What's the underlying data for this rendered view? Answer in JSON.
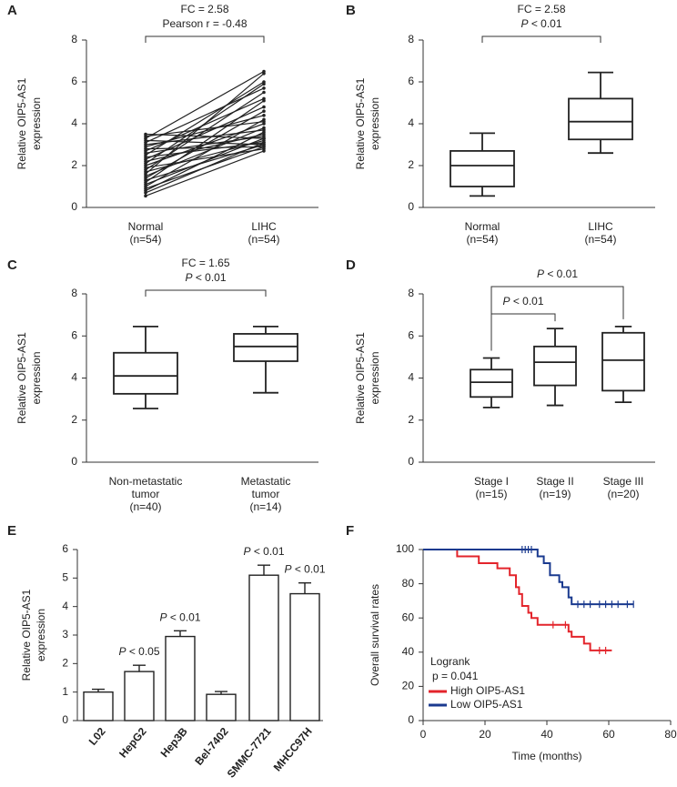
{
  "chart_data": [
    {
      "panel": "A",
      "type": "paired",
      "ylabel": [
        "Relative OIP5-AS1",
        "expression"
      ],
      "categories": [
        [
          "Normal",
          "(n=54)"
        ],
        [
          "LIHC",
          "(n=54)"
        ]
      ],
      "ylim": [
        0,
        8
      ],
      "yticks": [
        0,
        2,
        4,
        6,
        8
      ],
      "color": "#222222",
      "pairs": [
        [
          0.55,
          2.7
        ],
        [
          0.7,
          3.1
        ],
        [
          0.8,
          3.6
        ],
        [
          0.9,
          2.9
        ],
        [
          1.0,
          4.2
        ],
        [
          1.1,
          3.3
        ],
        [
          1.2,
          5.1
        ],
        [
          1.3,
          3.0
        ],
        [
          1.4,
          4.6
        ],
        [
          1.5,
          3.8
        ],
        [
          1.6,
          6.4
        ],
        [
          1.7,
          3.2
        ],
        [
          1.8,
          5.5
        ],
        [
          1.9,
          2.8
        ],
        [
          2.0,
          4.0
        ],
        [
          2.1,
          5.9
        ],
        [
          2.2,
          3.5
        ],
        [
          2.3,
          4.8
        ],
        [
          2.4,
          3.1
        ],
        [
          2.5,
          6.0
        ],
        [
          2.6,
          3.4
        ],
        [
          2.7,
          5.2
        ],
        [
          2.8,
          2.9
        ],
        [
          2.9,
          4.4
        ],
        [
          3.0,
          3.7
        ],
        [
          3.1,
          5.7
        ],
        [
          3.2,
          3.0
        ],
        [
          3.3,
          6.5
        ],
        [
          3.4,
          4.1
        ],
        [
          3.5,
          3.3
        ]
      ],
      "brackets": [
        {
          "from": 0,
          "to": 1,
          "label": [
            "FC = 2.58",
            "Pearson r = -0.48"
          ]
        }
      ]
    },
    {
      "panel": "B",
      "type": "box",
      "ylabel": [
        "Relative OIP5-AS1",
        "expression"
      ],
      "categories": [
        [
          "Normal",
          "(n=54)"
        ],
        [
          "LIHC",
          "(n=54)"
        ]
      ],
      "ylim": [
        0,
        8
      ],
      "yticks": [
        0,
        2,
        4,
        6,
        8
      ],
      "boxes": [
        {
          "min": 0.55,
          "q1": 1.0,
          "median": 2.0,
          "q3": 2.7,
          "max": 3.55
        },
        {
          "min": 2.6,
          "q1": 3.25,
          "median": 4.1,
          "q3": 5.2,
          "max": 6.45
        }
      ],
      "brackets": [
        {
          "from": 0,
          "to": 1,
          "label": [
            "FC = 2.58",
            "P < 0.01"
          ]
        }
      ]
    },
    {
      "panel": "C",
      "type": "box",
      "ylabel": [
        "Relative OIP5-AS1",
        "expression"
      ],
      "categories": [
        [
          "Non-metastatic",
          "tumor",
          "(n=40)"
        ],
        [
          "Metastatic",
          "tumor",
          "(n=14)"
        ]
      ],
      "ylim": [
        0,
        8
      ],
      "yticks": [
        0,
        2,
        4,
        6,
        8
      ],
      "boxes": [
        {
          "min": 2.55,
          "q1": 3.25,
          "median": 4.1,
          "q3": 5.2,
          "max": 6.45
        },
        {
          "min": 3.3,
          "q1": 4.8,
          "median": 5.5,
          "q3": 6.1,
          "max": 6.45
        }
      ],
      "brackets": [
        {
          "from": 0,
          "to": 1,
          "label": [
            "FC = 1.65",
            "P < 0.01"
          ]
        }
      ]
    },
    {
      "panel": "D",
      "type": "box",
      "ylabel": [
        "Relative OIP5-AS1",
        "expression"
      ],
      "categories": [
        [
          "Stage I",
          "(n=15)"
        ],
        [
          "Stage II",
          "(n=19)"
        ],
        [
          "Stage III",
          "(n=20)"
        ]
      ],
      "ylim": [
        0,
        8
      ],
      "yticks": [
        0,
        2,
        4,
        6,
        8
      ],
      "boxes": [
        {
          "min": 2.6,
          "q1": 3.1,
          "median": 3.8,
          "q3": 4.4,
          "max": 4.95
        },
        {
          "min": 2.7,
          "q1": 3.65,
          "median": 4.75,
          "q3": 5.5,
          "max": 6.35
        },
        {
          "min": 2.85,
          "q1": 3.4,
          "median": 4.85,
          "q3": 6.15,
          "max": 6.45
        }
      ],
      "brackets": [
        {
          "from": 0,
          "to": 1,
          "label": [
            "P < 0.01"
          ]
        },
        {
          "from": 0,
          "to": 2,
          "label": [
            "P < 0.01"
          ]
        }
      ]
    },
    {
      "panel": "E",
      "type": "bar",
      "ylabel": [
        "Relative OIP5-AS1",
        "expression"
      ],
      "categories": [
        "L02",
        "HepG2",
        "Hep3B",
        "Bel-7402",
        "SMMC-7721",
        "MHCC97H"
      ],
      "values": [
        1.0,
        1.72,
        2.95,
        0.92,
        5.1,
        4.45
      ],
      "errors": [
        0.1,
        0.22,
        0.2,
        0.1,
        0.35,
        0.38
      ],
      "bar_labels": [
        null,
        "P < 0.05",
        "P < 0.01",
        null,
        "P < 0.01",
        "P < 0.01"
      ],
      "color": "#ffffff",
      "ylim": [
        0,
        6
      ],
      "yticks": [
        0,
        1,
        2,
        3,
        4,
        5,
        6
      ]
    },
    {
      "panel": "F",
      "type": "survival",
      "ylabel": [
        "Overall survival rates"
      ],
      "xlabel": "Time (months)",
      "xlim": [
        0,
        80
      ],
      "xticks": [
        0,
        20,
        40,
        60,
        80
      ],
      "ylim": [
        0,
        100
      ],
      "yticks": [
        0,
        20,
        40,
        60,
        80,
        100
      ],
      "annotation": [
        "Logrank",
        "p = 0.041"
      ],
      "legend": "lower left",
      "series": [
        {
          "name": "High OIP5-AS1",
          "color": "#e3242b",
          "x": [
            0,
            11,
            11,
            18,
            18,
            24,
            24,
            28,
            28,
            30,
            30,
            31,
            31,
            32,
            32,
            34,
            34,
            35,
            35,
            37,
            37,
            47,
            47,
            48,
            48,
            52,
            52,
            54,
            54,
            61
          ],
          "values": [
            100,
            100,
            96,
            96,
            92,
            92,
            89,
            89,
            85,
            85,
            78,
            78,
            74,
            74,
            67,
            67,
            63,
            63,
            60,
            60,
            56,
            56,
            52,
            52,
            49,
            49,
            45,
            45,
            41,
            41
          ],
          "censored_x": [
            42,
            46,
            57,
            59
          ],
          "censored_values": [
            56,
            56,
            41,
            41
          ]
        },
        {
          "name": "Low OIP5-AS1",
          "color": "#1a3a8f",
          "x": [
            0,
            37,
            37,
            39,
            39,
            41,
            41,
            44,
            44,
            45,
            45,
            47,
            47,
            48,
            48,
            68
          ],
          "values": [
            100,
            100,
            96,
            96,
            92,
            92,
            85,
            85,
            81,
            81,
            78,
            78,
            72,
            72,
            68,
            68
          ],
          "censored_x": [
            32,
            33,
            34,
            35,
            50,
            52,
            54,
            57,
            59,
            61,
            63,
            66,
            68
          ],
          "censored_values": [
            100,
            100,
            100,
            100,
            68,
            68,
            68,
            68,
            68,
            68,
            68,
            68,
            68
          ]
        }
      ]
    }
  ]
}
